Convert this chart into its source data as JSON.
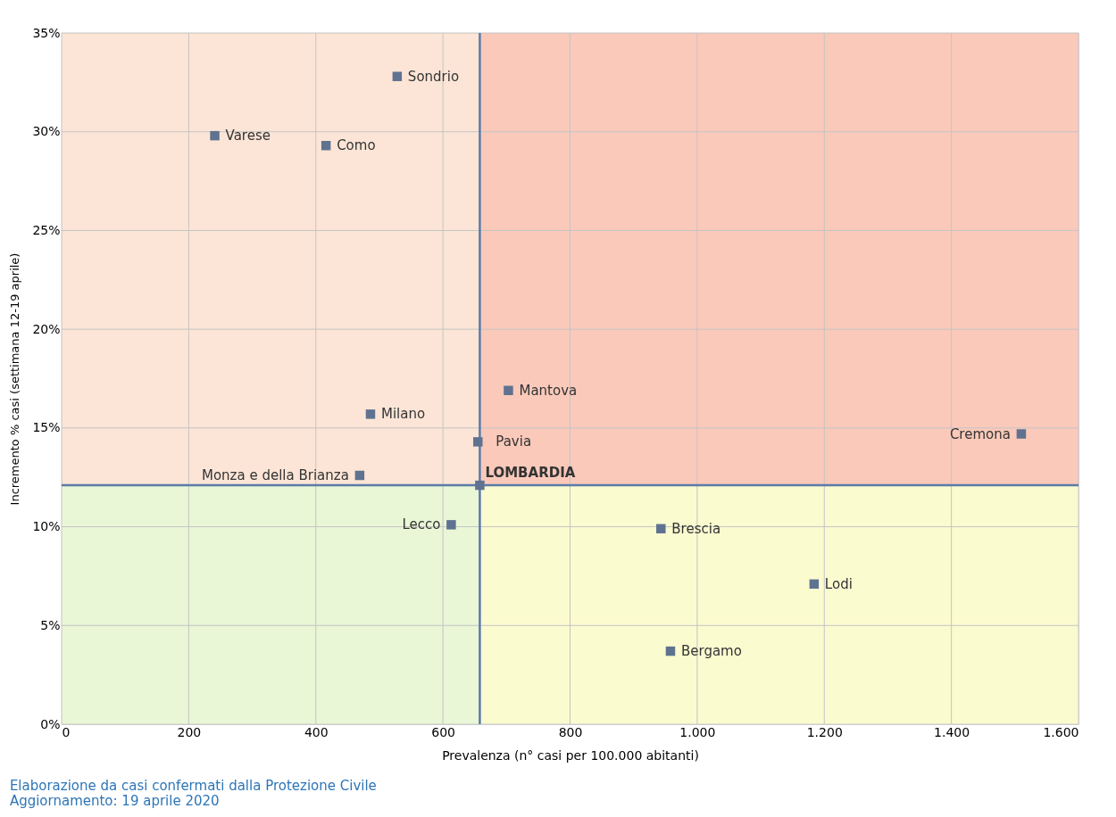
{
  "chart_data": {
    "type": "scatter",
    "xlabel": "Prevalenza  (n° casi per 100.000 abitanti)",
    "ylabel": "Incremento % casi (settimana 12-19 aprile)",
    "x": [
      528,
      241,
      416,
      486,
      703,
      655,
      469,
      658,
      1510,
      613,
      943,
      1184,
      958
    ],
    "series": [
      {
        "color": "#5f7290",
        "values": [
          32.8,
          29.8,
          29.3,
          15.7,
          16.9,
          14.3,
          12.6,
          12.1,
          14.7,
          10.1,
          9.9,
          7.1,
          3.7
        ]
      }
    ],
    "marker": "square",
    "grid": true,
    "xlim": [
      0,
      1600
    ],
    "xticks": [
      0,
      200,
      400,
      600,
      800,
      {
        "value": 1000,
        "label": "1.000"
      },
      {
        "value": 1200,
        "label": "1.200"
      },
      {
        "value": 1400,
        "label": "1.400"
      },
      {
        "value": 1600,
        "label": "1.600"
      }
    ],
    "ylim": [
      0,
      35
    ],
    "yticks": [
      {
        "value": 0,
        "label": "0%"
      },
      {
        "value": 5,
        "label": "5%"
      },
      {
        "value": 10,
        "label": "10%"
      },
      {
        "value": 15,
        "label": "15%"
      },
      {
        "value": 20,
        "label": "20%"
      },
      {
        "value": 25,
        "label": "25%"
      },
      {
        "value": 30,
        "label": "30%"
      },
      {
        "value": 35,
        "label": "35%"
      }
    ],
    "ref_lines": [
      {
        "axis": "x",
        "value": 658,
        "color": "#5a7ba8"
      },
      {
        "axis": "y",
        "value": 12.1,
        "color": "#5a7ba8"
      }
    ],
    "annotations": [
      {
        "text": "Sondrio",
        "x": 528,
        "y": 32.8
      },
      {
        "text": "Varese",
        "x": 241,
        "y": 29.8
      },
      {
        "text": "Como",
        "x": 416,
        "y": 29.3
      },
      {
        "text": "Milano",
        "x": 486,
        "y": 15.7
      },
      {
        "text": "Mantova",
        "x": 703,
        "y": 16.9
      },
      {
        "text": "Pavia",
        "x": 655,
        "y": 14.3
      },
      {
        "text": "Monza e della Brianza",
        "x": 469,
        "y": 12.6
      },
      {
        "text": "LOMBARDIA",
        "x": 658,
        "y": 12.1
      },
      {
        "text": "Cremona",
        "x": 1510,
        "y": 14.7
      },
      {
        "text": "Lecco",
        "x": 613,
        "y": 10.1
      },
      {
        "text": "Brescia",
        "x": 943,
        "y": 9.9
      },
      {
        "text": "Lodi",
        "x": 1184,
        "y": 7.1
      },
      {
        "text": "Bergamo",
        "x": 958,
        "y": 3.7
      },
      "Elaborazione da casi confermati dalla Protezione Civile",
      "Aggiornamento: 19 aprile 2020"
    ]
  }
}
